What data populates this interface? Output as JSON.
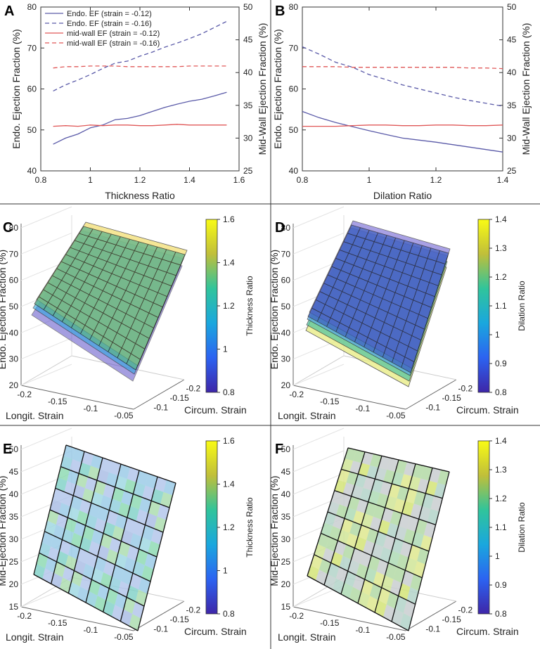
{
  "panels": {
    "A": {
      "letter": "A",
      "chart_data": {
        "type": "line",
        "xlabel": "Thickness Ratio",
        "ylabel_left": "Endo. Ejection Fraction (%)",
        "ylabel_right": "Mid-Wall Ejection Fraction (%)",
        "xlim": [
          0.8,
          1.6
        ],
        "ylim_left": [
          40,
          80
        ],
        "ylim_right": [
          25,
          50
        ],
        "x_ticks": [
          0.8,
          1.0,
          1.2,
          1.4,
          1.6
        ],
        "x_tick_labels": [
          "0.8",
          "1",
          "1.2",
          "1.4",
          "1.6"
        ],
        "y_ticks_left": [
          40,
          50,
          60,
          70,
          80
        ],
        "y_tick_labels_left": [
          "40",
          "50",
          "60",
          "70",
          "80"
        ],
        "y_ticks_right": [
          25,
          30,
          35,
          40,
          45,
          50
        ],
        "y_tick_labels_right": [
          "25",
          "30",
          "35",
          "40",
          "45",
          "50"
        ],
        "x": [
          0.85,
          0.9,
          0.95,
          1.0,
          1.05,
          1.1,
          1.15,
          1.2,
          1.25,
          1.3,
          1.35,
          1.4,
          1.45,
          1.5,
          1.55
        ],
        "series": [
          {
            "name": "Endo. EF (strain = -0.12)",
            "axis": "left",
            "color": "#5a5aa8",
            "dash": "solid",
            "values": [
              46.5,
              48.0,
              49.0,
              50.5,
              51.2,
              52.5,
              52.8,
              53.5,
              54.5,
              55.5,
              56.3,
              57.0,
              57.5,
              58.3,
              59.2
            ]
          },
          {
            "name": "Endo. EF (strain = -0.16)",
            "axis": "left",
            "color": "#5a5aa8",
            "dash": "dashed",
            "values": [
              59.5,
              61.0,
              62.2,
              63.5,
              65.0,
              66.3,
              66.8,
              68.0,
              69.0,
              70.2,
              71.2,
              72.3,
              73.5,
              75.0,
              76.5
            ]
          },
          {
            "name": "mid-wall EF (strain = -0.12)",
            "axis": "right",
            "color": "#e05858",
            "dash": "solid",
            "values": [
              31.8,
              31.9,
              31.8,
              32.0,
              31.9,
              32.0,
              32.0,
              31.9,
              31.9,
              32.0,
              32.1,
              32.0,
              32.0,
              32.0,
              32.0
            ]
          },
          {
            "name": "mid-wall EF (strain = -0.16)",
            "axis": "right",
            "color": "#e05858",
            "dash": "dashed",
            "values": [
              40.7,
              40.9,
              40.9,
              41.0,
              41.0,
              41.0,
              40.9,
              40.9,
              40.9,
              40.9,
              40.9,
              41.0,
              41.0,
              41.0,
              41.0
            ]
          }
        ]
      }
    },
    "B": {
      "letter": "B",
      "chart_data": {
        "type": "line",
        "xlabel": "Dilation Ratio",
        "ylabel_left": "Endo. Ejection Fraction (%)",
        "ylabel_right": "Mid-Wall Ejection Fraction (%)",
        "xlim": [
          0.8,
          1.4
        ],
        "ylim_left": [
          40,
          80
        ],
        "ylim_right": [
          25,
          50
        ],
        "x_ticks": [
          0.8,
          1.0,
          1.2,
          1.4
        ],
        "x_tick_labels": [
          "0.8",
          "1",
          "1.2",
          "1.4"
        ],
        "y_ticks_left": [
          40,
          50,
          60,
          70,
          80
        ],
        "y_tick_labels_left": [
          "40",
          "50",
          "60",
          "70",
          "80"
        ],
        "y_ticks_right": [
          25,
          30,
          35,
          40,
          45,
          50
        ],
        "y_tick_labels_right": [
          "25",
          "30",
          "35",
          "40",
          "45",
          "50"
        ],
        "x": [
          0.8,
          0.85,
          0.9,
          0.95,
          1.0,
          1.05,
          1.1,
          1.15,
          1.2,
          1.25,
          1.3,
          1.35,
          1.4
        ],
        "series": [
          {
            "name": "Endo. EF (strain = -0.12)",
            "axis": "left",
            "color": "#5a5aa8",
            "dash": "solid",
            "values": [
              54.5,
              53.0,
              51.8,
              50.8,
              49.8,
              48.9,
              48.0,
              47.5,
              47.0,
              46.4,
              45.8,
              45.2,
              44.6
            ]
          },
          {
            "name": "Endo. EF (strain = -0.16)",
            "axis": "left",
            "color": "#5a5aa8",
            "dash": "dashed",
            "values": [
              70.3,
              68.5,
              66.5,
              65.3,
              63.5,
              62.3,
              61.0,
              60.0,
              59.0,
              58.0,
              57.2,
              56.5,
              55.8
            ]
          },
          {
            "name": "mid-wall EF (strain = -0.12)",
            "axis": "right",
            "color": "#e05858",
            "dash": "solid",
            "values": [
              31.8,
              31.8,
              31.8,
              31.9,
              32.0,
              32.0,
              31.9,
              31.9,
              32.0,
              32.0,
              31.9,
              31.9,
              32.0
            ]
          },
          {
            "name": "mid-wall EF (strain = -0.16)",
            "axis": "right",
            "color": "#e05858",
            "dash": "dashed",
            "values": [
              40.9,
              40.9,
              40.9,
              40.8,
              40.8,
              40.8,
              40.8,
              40.8,
              40.8,
              40.8,
              40.7,
              40.7,
              40.6
            ]
          }
        ]
      }
    },
    "C": {
      "letter": "C",
      "chart_data": {
        "type": "surface3d",
        "xlabel": "Longit. Strain",
        "ylabel": "Circum. Strain",
        "zlabel": "Endo. Ejection Fraction (%)",
        "x_tick_labels": [
          "-0.2",
          "-0.15",
          "-0.1",
          "-0.05"
        ],
        "y_tick_labels": [
          "-0.1",
          "-0.15",
          "-0.2"
        ],
        "z_tick_labels": [
          "20",
          "30",
          "40",
          "50",
          "60",
          "70",
          "80"
        ],
        "colorbar_label": "Thickness Ratio",
        "colorbar_range": [
          0.8,
          1.6
        ],
        "colorbar_tick_labels": [
          "0.8",
          "1",
          "1.2",
          "1.4",
          "1.6"
        ]
      }
    },
    "D": {
      "letter": "D",
      "chart_data": {
        "type": "surface3d",
        "xlabel": "Longit. Strain",
        "ylabel": "Circum. Strain",
        "zlabel": "Endo. Ejection Fraction (%)",
        "x_tick_labels": [
          "-0.2",
          "-0.15",
          "-0.1",
          "-0.05"
        ],
        "y_tick_labels": [
          "-0.1",
          "-0.15",
          "-0.2"
        ],
        "z_tick_labels": [
          "20",
          "30",
          "40",
          "50",
          "60",
          "70",
          "80"
        ],
        "colorbar_label": "Dilation Ratio",
        "colorbar_range": [
          0.8,
          1.4
        ],
        "colorbar_tick_labels": [
          "0.8",
          "0.9",
          "1",
          "1.1",
          "1.2",
          "1.3",
          "1.4"
        ]
      }
    },
    "E": {
      "letter": "E",
      "chart_data": {
        "type": "surface3d",
        "xlabel": "Longit. Strain",
        "ylabel": "Circum. Strain",
        "zlabel": "Mid-Ejection Fraction (%)",
        "x_tick_labels": [
          "-0.2",
          "-0.15",
          "-0.1",
          "-0.05"
        ],
        "y_tick_labels": [
          "-0.1",
          "-0.15",
          "-0.2"
        ],
        "z_tick_labels": [
          "15",
          "20",
          "25",
          "30",
          "35",
          "40",
          "45",
          "50"
        ],
        "colorbar_label": "Thickness Ratio",
        "colorbar_range": [
          0.8,
          1.6
        ],
        "colorbar_tick_labels": [
          "0.8",
          "1",
          "1.2",
          "1.4",
          "1.6"
        ]
      }
    },
    "F": {
      "letter": "F",
      "chart_data": {
        "type": "surface3d",
        "xlabel": "Longit. Strain",
        "ylabel": "Circum. Strain",
        "zlabel": "Mid-Ejection Fraction (%)",
        "x_tick_labels": [
          "-0.2",
          "-0.15",
          "-0.1",
          "-0.05"
        ],
        "y_tick_labels": [
          "-0.1",
          "-0.15",
          "-0.2"
        ],
        "z_tick_labels": [
          "15",
          "20",
          "25",
          "30",
          "35",
          "40",
          "45",
          "50"
        ],
        "colorbar_label": "Dilation Ratio",
        "colorbar_range": [
          0.8,
          1.4
        ],
        "colorbar_tick_labels": [
          "0.8",
          "0.9",
          "1",
          "1.1",
          "1.2",
          "1.3",
          "1.4"
        ]
      }
    }
  }
}
